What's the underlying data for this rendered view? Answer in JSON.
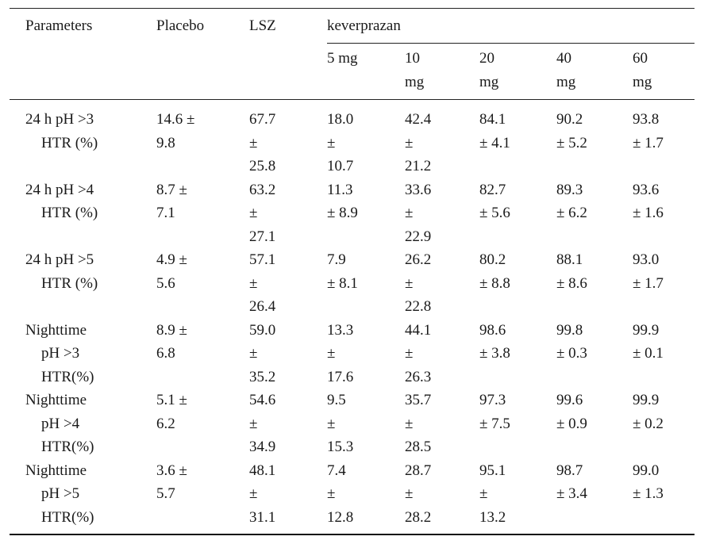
{
  "header": {
    "parameters": "Parameters",
    "placebo": "Placebo",
    "lsz": "LSZ",
    "keverprazan": "keverprazan",
    "doses": [
      [
        "5 mg"
      ],
      [
        "10",
        "mg"
      ],
      [
        "20",
        "mg"
      ],
      [
        "40",
        "mg"
      ],
      [
        "60",
        "mg"
      ]
    ]
  },
  "rows": [
    {
      "label": [
        "24 h pH >3",
        "HTR (%)"
      ],
      "cells": [
        [
          "14.6 ±",
          "9.8"
        ],
        [
          "67.7",
          "±",
          "25.8"
        ],
        [
          "18.0",
          "±",
          "10.7"
        ],
        [
          "42.4",
          "±",
          "21.2"
        ],
        [
          "84.1",
          "± 4.1"
        ],
        [
          "90.2",
          "± 5.2"
        ],
        [
          "93.8",
          "± 1.7"
        ]
      ]
    },
    {
      "label": [
        "24 h pH >4",
        "HTR (%)"
      ],
      "cells": [
        [
          "8.7 ±",
          "7.1"
        ],
        [
          "63.2",
          "±",
          "27.1"
        ],
        [
          "11.3",
          "± 8.9"
        ],
        [
          "33.6",
          "±",
          "22.9"
        ],
        [
          "82.7",
          "± 5.6"
        ],
        [
          "89.3",
          "± 6.2"
        ],
        [
          "93.6",
          "± 1.6"
        ]
      ]
    },
    {
      "label": [
        "24 h pH >5",
        "HTR (%)"
      ],
      "cells": [
        [
          "4.9 ±",
          "5.6"
        ],
        [
          "57.1",
          "±",
          "26.4"
        ],
        [
          "7.9",
          "± 8.1"
        ],
        [
          "26.2",
          "±",
          "22.8"
        ],
        [
          "80.2",
          "± 8.8"
        ],
        [
          "88.1",
          "± 8.6"
        ],
        [
          "93.0",
          "± 1.7"
        ]
      ]
    },
    {
      "label": [
        "Nighttime",
        "pH >3",
        "HTR(%)"
      ],
      "cells": [
        [
          "8.9 ±",
          "6.8"
        ],
        [
          "59.0",
          "±",
          "35.2"
        ],
        [
          "13.3",
          "±",
          "17.6"
        ],
        [
          "44.1",
          "±",
          "26.3"
        ],
        [
          "98.6",
          "± 3.8"
        ],
        [
          "99.8",
          "± 0.3"
        ],
        [
          "99.9",
          "± 0.1"
        ]
      ]
    },
    {
      "label": [
        "Nighttime",
        "pH >4",
        "HTR(%)"
      ],
      "cells": [
        [
          "5.1 ±",
          "6.2"
        ],
        [
          "54.6",
          "±",
          "34.9"
        ],
        [
          "9.5",
          "±",
          "15.3"
        ],
        [
          "35.7",
          "±",
          "28.5"
        ],
        [
          "97.3",
          "± 7.5"
        ],
        [
          "99.6",
          "± 0.9"
        ],
        [
          "99.9",
          "± 0.2"
        ]
      ]
    },
    {
      "label": [
        "Nighttime",
        "pH >5",
        "HTR(%)"
      ],
      "cells": [
        [
          "3.6 ±",
          "5.7"
        ],
        [
          "48.1",
          "±",
          "31.1"
        ],
        [
          "7.4",
          "±",
          "12.8"
        ],
        [
          "28.7",
          "±",
          "28.2"
        ],
        [
          "95.1",
          "±",
          "13.2"
        ],
        [
          "98.7",
          "± 3.4"
        ],
        [
          "99.0",
          "± 1.3"
        ]
      ]
    }
  ]
}
